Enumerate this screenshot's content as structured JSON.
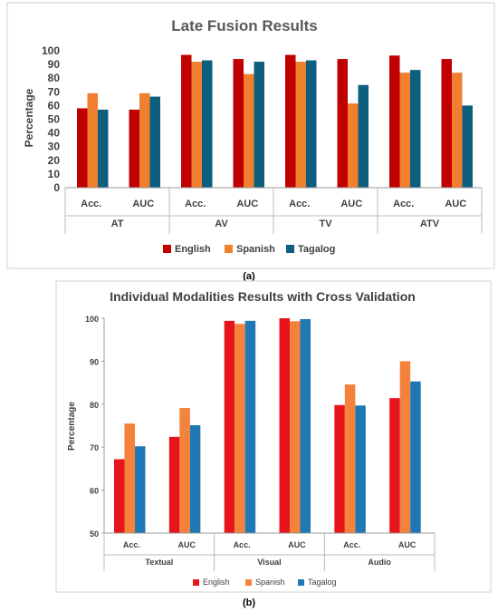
{
  "colors": {
    "english": "#C00000",
    "spanish": "#F07F2F",
    "tagalog": "#0E5E7E"
  },
  "chart_data": [
    {
      "type": "bar",
      "title": "Late Fusion Results",
      "caption": "(a)",
      "ylabel": "Percentage",
      "xlabel": "",
      "ylim": [
        0,
        100
      ],
      "yticks": [
        0,
        10,
        20,
        30,
        40,
        50,
        60,
        70,
        80,
        90,
        100
      ],
      "grid": false,
      "legend": "bottom",
      "groups": [
        "AT",
        "AV",
        "TV",
        "ATV"
      ],
      "categories": [
        "Acc.",
        "AUC",
        "Acc.",
        "AUC",
        "Acc.",
        "AUC",
        "Acc.",
        "AUC"
      ],
      "series": [
        {
          "name": "English",
          "color": "#C00000",
          "values": [
            58,
            57,
            97,
            94,
            97,
            94,
            96.5,
            94
          ]
        },
        {
          "name": "Spanish",
          "color": "#F07F2F",
          "values": [
            69,
            69,
            92,
            83,
            92,
            61.5,
            84,
            84
          ]
        },
        {
          "name": "Tagalog",
          "color": "#0E5E7E",
          "values": [
            57,
            66.5,
            93,
            92,
            93,
            75,
            86,
            60
          ]
        }
      ]
    },
    {
      "type": "bar",
      "title": "Individual Modalities Results with Cross Validation",
      "caption": "(b)",
      "ylabel": "Percentage",
      "xlabel": "",
      "ylim": [
        50,
        100
      ],
      "yticks": [
        50,
        60,
        70,
        80,
        90,
        100
      ],
      "grid": false,
      "legend": "bottom",
      "groups": [
        "Textual",
        "Visual",
        "Audio"
      ],
      "categories": [
        "Acc.",
        "AUC",
        "Acc.",
        "AUC",
        "Acc.",
        "AUC"
      ],
      "series": [
        {
          "name": "English",
          "color": "#E8141B",
          "values": [
            67.2,
            72.4,
            99.4,
            100,
            79.8,
            81.4
          ]
        },
        {
          "name": "Spanish",
          "color": "#F5823B",
          "values": [
            75.5,
            79.1,
            98.7,
            99.3,
            84.6,
            90.0
          ]
        },
        {
          "name": "Tagalog",
          "color": "#1F78B4",
          "values": [
            70.2,
            75.1,
            99.4,
            99.8,
            79.7,
            85.3
          ]
        }
      ]
    }
  ]
}
